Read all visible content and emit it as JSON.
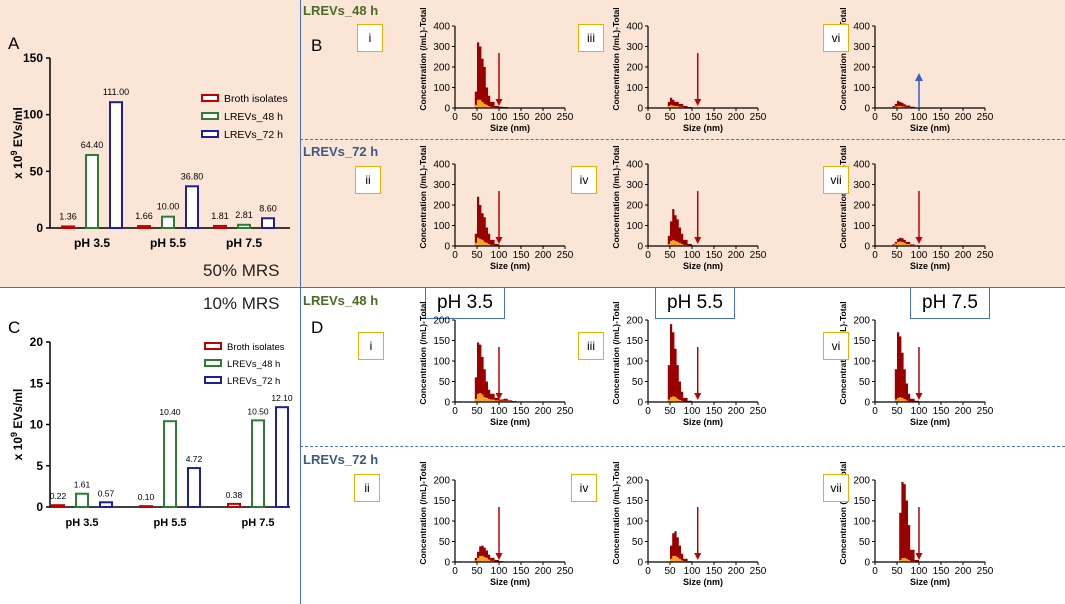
{
  "panel_labels": {
    "A": "A",
    "B": "B",
    "C": "C",
    "D": "D"
  },
  "mrs_labels": {
    "top": "50% MRS",
    "bottom": "10% MRS"
  },
  "row_labels": {
    "b_48": "LREVs_48 h",
    "b_72": "LREVs_72 h",
    "d_48": "LREVs_48 h",
    "d_72": "LREVs_72 h"
  },
  "ph_headers": [
    "pH 3.5",
    "pH 5.5",
    "pH 7.5"
  ],
  "colors": {
    "broth": "#C00000",
    "lrevs48": "#2E7D32",
    "lrevs72": "#1F1F9A",
    "nta_dark": "#9B0000",
    "nta_light": "#F5A623",
    "arrow_red": "#C00000",
    "arrow_blue": "#3A5FC8",
    "row48": "#4A6B24",
    "row72": "#3D5A80"
  },
  "chart_data": [
    {
      "id": "A",
      "type": "bar",
      "title": "",
      "ylabel": "x 10^9 EVs/ml",
      "ylabel_prefix": "x 10",
      "ylabel_exp": "9",
      "ylabel_suffix": " EVs/ml",
      "ylim": [
        0,
        150
      ],
      "yticks": [
        0,
        50,
        100,
        150
      ],
      "categories": [
        "pH 3.5",
        "pH 5.5",
        "pH 7.5"
      ],
      "series": [
        {
          "name": "Broth isolates",
          "values": [
            1.36,
            1.66,
            1.81
          ],
          "labels": [
            "1.36",
            "1.66",
            "1.81"
          ]
        },
        {
          "name": "LREVs_48 h",
          "values": [
            64.4,
            10.0,
            2.81
          ],
          "labels": [
            "64.40",
            "10.00",
            "2.81"
          ]
        },
        {
          "name": "LREVs_72 h",
          "values": [
            111.0,
            36.8,
            8.6
          ],
          "labels": [
            "111.00",
            "36.80",
            "8.60"
          ]
        }
      ],
      "legend": "right"
    },
    {
      "id": "C",
      "type": "bar",
      "title": "",
      "ylabel": "x 10^9 EVs/ml",
      "ylabel_prefix": "x 10",
      "ylabel_exp": "9",
      "ylabel_suffix": " EVs/ml",
      "ylim": [
        0,
        20
      ],
      "yticks": [
        0,
        5,
        10,
        15,
        20
      ],
      "categories": [
        "pH 3.5",
        "pH 5.5",
        "pH 7.5"
      ],
      "series": [
        {
          "name": "Broth isolates",
          "values": [
            0.22,
            0.1,
            0.38
          ],
          "labels": [
            "0.22",
            "0.10",
            "0.38"
          ]
        },
        {
          "name": "LREVs_48 h",
          "values": [
            1.61,
            10.4,
            10.5
          ],
          "labels": [
            "1.61",
            "10.40",
            "10.50"
          ]
        },
        {
          "name": "LREVs_72 h",
          "values": [
            0.57,
            4.72,
            12.1
          ],
          "labels": [
            "0.57",
            "4.72",
            "12.10"
          ]
        }
      ],
      "legend": "top-right"
    },
    {
      "id": "B-i",
      "roman": "i",
      "type": "area",
      "xlabel": "Size (nm)",
      "ylabel": "Concentration (/mL)-Total",
      "xlim": [
        0,
        250
      ],
      "ylim": [
        0,
        400
      ],
      "xticks": [
        0,
        50,
        100,
        150,
        200,
        250
      ],
      "yticks": [
        0,
        100,
        200,
        300,
        400
      ],
      "x": [
        40,
        45,
        50,
        55,
        60,
        65,
        70,
        75,
        80,
        90,
        100,
        110,
        120,
        130
      ],
      "total": [
        0,
        80,
        320,
        300,
        240,
        200,
        100,
        60,
        30,
        10,
        6,
        5,
        2,
        0
      ],
      "minor": [
        0,
        15,
        40,
        40,
        30,
        20,
        15,
        10,
        5,
        3,
        2,
        1,
        0,
        0
      ],
      "arrow": {
        "x": 100,
        "kind": "down"
      }
    },
    {
      "id": "B-iii",
      "roman": "iii",
      "type": "area",
      "xlabel": "Size (nm)",
      "ylabel": "Concentration (/mL)-Total",
      "xlim": [
        0,
        250
      ],
      "ylim": [
        0,
        400
      ],
      "xticks": [
        0,
        50,
        100,
        150,
        200,
        250
      ],
      "yticks": [
        0,
        100,
        200,
        300,
        400
      ],
      "x": [
        40,
        45,
        50,
        55,
        60,
        70,
        80,
        90,
        100,
        110
      ],
      "total": [
        0,
        30,
        50,
        40,
        30,
        20,
        10,
        5,
        2,
        0
      ],
      "minor": [
        0,
        10,
        15,
        12,
        10,
        6,
        3,
        1,
        0,
        0
      ],
      "arrow": {
        "x": 113,
        "kind": "down"
      }
    },
    {
      "id": "B-vi",
      "roman": "vi",
      "type": "area",
      "xlabel": "Size (nm)",
      "ylabel": "Concentration (/mL)-Total",
      "xlim": [
        0,
        250
      ],
      "ylim": [
        0,
        400
      ],
      "xticks": [
        0,
        50,
        100,
        150,
        200,
        250
      ],
      "yticks": [
        0,
        100,
        200,
        300,
        400
      ],
      "x": [
        35,
        40,
        45,
        50,
        55,
        60,
        65,
        70,
        80,
        90,
        100
      ],
      "total": [
        0,
        10,
        20,
        35,
        30,
        25,
        18,
        12,
        6,
        2,
        0
      ],
      "minor": [
        0,
        4,
        8,
        10,
        10,
        8,
        6,
        4,
        2,
        1,
        0
      ],
      "arrow": {
        "x": 100,
        "kind": "up"
      }
    },
    {
      "id": "B-ii",
      "roman": "ii",
      "type": "area",
      "xlabel": "Size (nm)",
      "ylabel": "Concentration (/mL)-Total",
      "xlim": [
        0,
        250
      ],
      "ylim": [
        0,
        400
      ],
      "xticks": [
        0,
        50,
        100,
        150,
        200,
        250
      ],
      "yticks": [
        0,
        100,
        200,
        300,
        400
      ],
      "x": [
        40,
        45,
        50,
        55,
        60,
        65,
        70,
        75,
        80,
        90,
        100,
        110
      ],
      "total": [
        0,
        60,
        240,
        200,
        160,
        140,
        90,
        60,
        30,
        10,
        3,
        0
      ],
      "minor": [
        0,
        15,
        40,
        35,
        30,
        20,
        15,
        10,
        5,
        2,
        1,
        0
      ],
      "arrow": {
        "x": 100,
        "kind": "down"
      }
    },
    {
      "id": "B-iv",
      "roman": "iv",
      "type": "area",
      "xlabel": "Size (nm)",
      "ylabel": "Concentration (/mL)-Total",
      "xlim": [
        0,
        250
      ],
      "ylim": [
        0,
        400
      ],
      "xticks": [
        0,
        50,
        100,
        150,
        200,
        250
      ],
      "yticks": [
        0,
        100,
        200,
        300,
        400
      ],
      "x": [
        40,
        45,
        50,
        55,
        60,
        65,
        70,
        75,
        80,
        90,
        100,
        110
      ],
      "total": [
        0,
        50,
        120,
        180,
        150,
        130,
        90,
        60,
        30,
        10,
        3,
        0
      ],
      "minor": [
        0,
        10,
        25,
        30,
        25,
        20,
        15,
        10,
        5,
        2,
        1,
        0
      ],
      "arrow": {
        "x": 113,
        "kind": "down"
      }
    },
    {
      "id": "B-vii",
      "roman": "vii",
      "type": "area",
      "xlabel": "Size (nm)",
      "ylabel": "Concentration (/mL)-Total",
      "xlim": [
        0,
        250
      ],
      "ylim": [
        0,
        400
      ],
      "xticks": [
        0,
        50,
        100,
        150,
        200,
        250
      ],
      "yticks": [
        0,
        100,
        200,
        300,
        400
      ],
      "x": [
        35,
        40,
        45,
        50,
        55,
        60,
        65,
        70,
        80,
        90,
        100
      ],
      "total": [
        0,
        10,
        20,
        35,
        40,
        38,
        30,
        20,
        8,
        3,
        0
      ],
      "minor": [
        0,
        6,
        12,
        20,
        22,
        20,
        16,
        10,
        4,
        1,
        0
      ],
      "arrow": {
        "x": 100,
        "kind": "down"
      }
    },
    {
      "id": "D-i",
      "roman": "i",
      "type": "area",
      "xlabel": "Size (nm)",
      "ylabel": "Concentration (/mL)-Total",
      "xlim": [
        0,
        250
      ],
      "ylim": [
        0,
        200
      ],
      "xticks": [
        0,
        50,
        100,
        150,
        200,
        250
      ],
      "yticks": [
        0,
        50,
        100,
        150,
        200
      ],
      "x": [
        40,
        45,
        50,
        55,
        60,
        65,
        70,
        75,
        80,
        90,
        100,
        110,
        120,
        130,
        140
      ],
      "total": [
        0,
        60,
        145,
        140,
        110,
        80,
        50,
        30,
        20,
        10,
        6,
        8,
        4,
        2,
        0
      ],
      "minor": [
        0,
        8,
        20,
        22,
        18,
        12,
        10,
        8,
        6,
        4,
        3,
        3,
        2,
        1,
        0
      ],
      "arrow": {
        "x": 100,
        "kind": "down"
      }
    },
    {
      "id": "D-iii",
      "roman": "iii",
      "type": "area",
      "xlabel": "Size (nm)",
      "ylabel": "Concentration (/mL)-Total",
      "xlim": [
        0,
        250
      ],
      "ylim": [
        0,
        200
      ],
      "xticks": [
        0,
        50,
        100,
        150,
        200,
        250
      ],
      "yticks": [
        0,
        50,
        100,
        150,
        200
      ],
      "x": [
        40,
        45,
        50,
        55,
        60,
        65,
        70,
        75,
        80,
        90,
        100
      ],
      "total": [
        0,
        90,
        190,
        170,
        130,
        90,
        50,
        25,
        10,
        3,
        0
      ],
      "minor": [
        0,
        6,
        12,
        14,
        12,
        8,
        5,
        3,
        1,
        0,
        0
      ],
      "arrow": {
        "x": 113,
        "kind": "down"
      }
    },
    {
      "id": "D-vi",
      "roman": "vi",
      "type": "area",
      "xlabel": "Size (nm)",
      "ylabel": "Concentration (/mL)-Total",
      "xlim": [
        0,
        250
      ],
      "ylim": [
        0,
        200
      ],
      "xticks": [
        0,
        50,
        100,
        150,
        200,
        250
      ],
      "yticks": [
        0,
        50,
        100,
        150,
        200
      ],
      "x": [
        40,
        45,
        50,
        55,
        60,
        65,
        70,
        75,
        80,
        90,
        100
      ],
      "total": [
        0,
        80,
        170,
        160,
        120,
        80,
        45,
        20,
        8,
        3,
        0
      ],
      "minor": [
        0,
        6,
        10,
        12,
        10,
        7,
        4,
        2,
        1,
        0,
        0
      ],
      "arrow": {
        "x": 100,
        "kind": "down"
      }
    },
    {
      "id": "D-ii",
      "roman": "ii",
      "type": "area",
      "xlabel": "Size (nm)",
      "ylabel": "Concentration (/mL)-Total",
      "xlim": [
        0,
        250
      ],
      "ylim": [
        0,
        200
      ],
      "xticks": [
        0,
        50,
        100,
        150,
        200,
        250
      ],
      "yticks": [
        0,
        50,
        100,
        150,
        200
      ],
      "x": [
        40,
        45,
        50,
        55,
        60,
        65,
        70,
        75,
        80,
        90,
        100,
        110
      ],
      "total": [
        0,
        10,
        25,
        38,
        40,
        35,
        28,
        18,
        10,
        5,
        2,
        0
      ],
      "minor": [
        0,
        4,
        10,
        15,
        15,
        12,
        10,
        6,
        3,
        1,
        0,
        0
      ],
      "arrow": {
        "x": 100,
        "kind": "down"
      }
    },
    {
      "id": "D-iv",
      "roman": "iv",
      "type": "area",
      "xlabel": "Size (nm)",
      "ylabel": "Concentration (/mL)-Total",
      "xlim": [
        0,
        250
      ],
      "ylim": [
        0,
        200
      ],
      "xticks": [
        0,
        50,
        100,
        150,
        200,
        250
      ],
      "yticks": [
        0,
        50,
        100,
        150,
        200
      ],
      "x": [
        45,
        50,
        55,
        60,
        65,
        70,
        75,
        80,
        90,
        100
      ],
      "total": [
        0,
        40,
        70,
        75,
        60,
        40,
        20,
        8,
        2,
        0
      ],
      "minor": [
        0,
        8,
        15,
        15,
        12,
        8,
        4,
        2,
        0,
        0
      ],
      "arrow": {
        "x": 113,
        "kind": "down"
      }
    },
    {
      "id": "D-vii",
      "roman": "vii",
      "type": "area",
      "xlabel": "Size (nm)",
      "ylabel": "Concentration (/mL)-Total",
      "xlim": [
        0,
        250
      ],
      "ylim": [
        0,
        200
      ],
      "xticks": [
        0,
        50,
        100,
        150,
        200,
        250
      ],
      "yticks": [
        0,
        50,
        100,
        150,
        200
      ],
      "x": [
        50,
        55,
        60,
        65,
        70,
        75,
        80,
        90,
        100
      ],
      "total": [
        0,
        120,
        195,
        190,
        150,
        90,
        30,
        5,
        0
      ],
      "minor": [
        0,
        5,
        10,
        10,
        8,
        5,
        2,
        0,
        0
      ],
      "arrow": {
        "x": 100,
        "kind": "down"
      }
    }
  ]
}
